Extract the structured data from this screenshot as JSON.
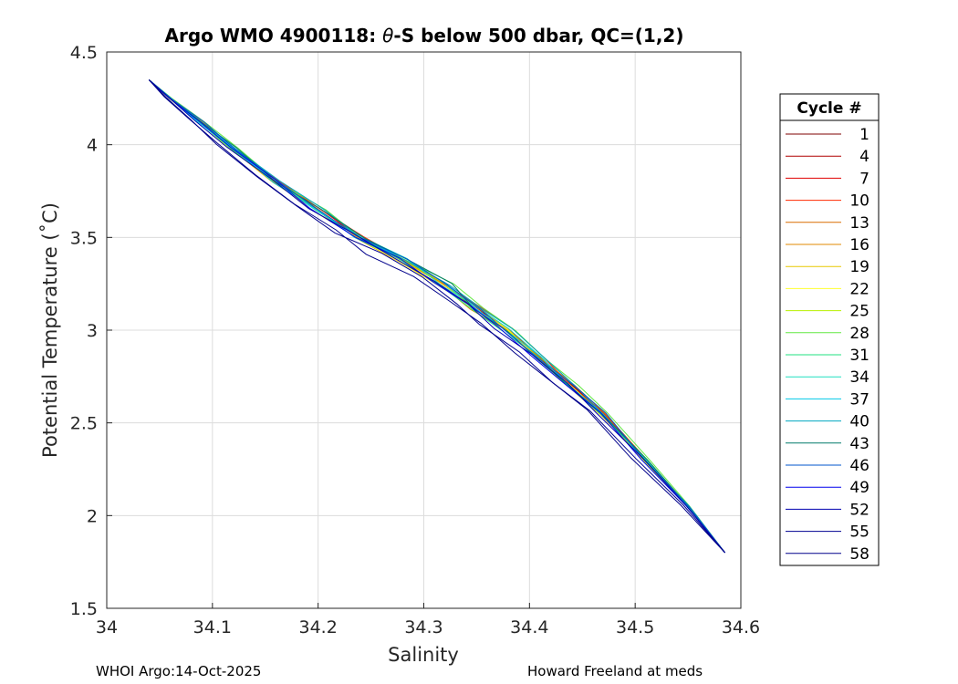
{
  "chart_data": {
    "type": "line",
    "title": "Argo WMO 4900118: θ-S below 500 dbar,  QC=(1,2)",
    "title_parts": {
      "before": "Argo WMO 4900118: ",
      "theta": "θ",
      "after": "-S below 500 dbar,  QC=(1,2)"
    },
    "xlabel": "Salinity",
    "ylabel": "Potential Temperature (˚C)",
    "xlim": [
      34.0,
      34.6
    ],
    "ylim": [
      1.5,
      4.5
    ],
    "xticks": [
      34.0,
      34.1,
      34.2,
      34.3,
      34.4,
      34.5,
      34.6
    ],
    "xtick_labels": [
      "34",
      "34.1",
      "34.2",
      "34.3",
      "34.4",
      "34.5",
      "34.6"
    ],
    "yticks": [
      1.5,
      2.0,
      2.5,
      3.0,
      3.5,
      4.0,
      4.5
    ],
    "ytick_labels": [
      "1.5",
      "2",
      "2.5",
      "3",
      "3.5",
      "4",
      "4.5"
    ],
    "grid": true,
    "legend": {
      "title": "Cycle #",
      "placement": "outside-right",
      "entries": [
        "1",
        "4",
        "7",
        "10",
        "13",
        "16",
        "19",
        "22",
        "25",
        "28",
        "31",
        "34",
        "37",
        "40",
        "43",
        "46",
        "49",
        "52",
        "55",
        "58"
      ],
      "colors": [
        "#7f0000",
        "#b00000",
        "#e00000",
        "#ff2a00",
        "#d96c00",
        "#e08a00",
        "#e8c800",
        "#ffff30",
        "#b8f000",
        "#60e840",
        "#20e080",
        "#20e0c0",
        "#00c8e8",
        "#00a8c0",
        "#007a6a",
        "#0055cc",
        "#0000ee",
        "#0000b0",
        "#000090",
        "#00008b"
      ]
    },
    "series_base": {
      "salinity": [
        34.585,
        34.55,
        34.51,
        34.47,
        34.44,
        34.41,
        34.38,
        34.35,
        34.32,
        34.28,
        34.24,
        34.2,
        34.16,
        34.12,
        34.09,
        34.06,
        34.04
      ],
      "theta": [
        1.8,
        2.05,
        2.3,
        2.55,
        2.7,
        2.85,
        3.0,
        3.12,
        3.25,
        3.38,
        3.5,
        3.65,
        3.8,
        3.98,
        4.12,
        4.25,
        4.35
      ]
    },
    "footer_left": "WHOI Argo:14-Oct-2025",
    "footer_right": "Howard Freeland at meds"
  }
}
